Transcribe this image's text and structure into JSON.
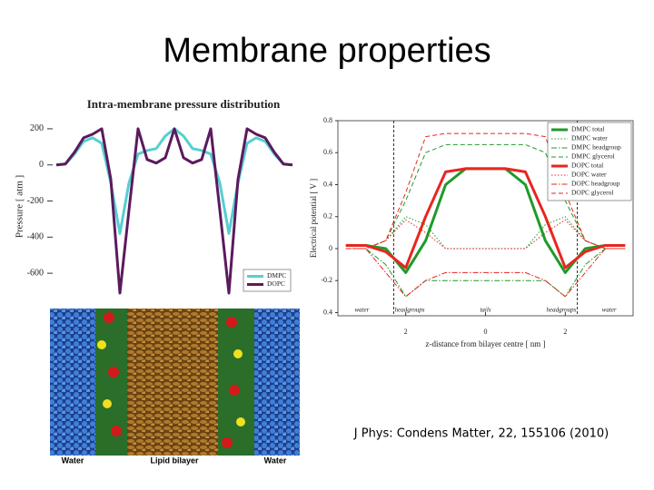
{
  "slide": {
    "title": "Membrane properties",
    "citation": "J Phys: Condens Matter, 22, 155106 (2010)"
  },
  "image": {
    "labels": [
      "Water",
      "Lipid bilayer",
      "Water"
    ]
  },
  "chart_data": [
    {
      "type": "line",
      "title": "Intra-membrane pressure distribution",
      "ylabel": "Pressure [ atm ]",
      "ylim": [
        -720,
        260
      ],
      "yticks": [
        200,
        0,
        -200,
        -400,
        -600
      ],
      "legend": "lower right",
      "series": [
        {
          "name": "DMPC",
          "color": "#56cfd0",
          "dash": "solid",
          "values": [
            0,
            5,
            60,
            130,
            150,
            120,
            -100,
            -380,
            -100,
            60,
            80,
            90,
            160,
            200,
            160,
            90,
            80,
            60,
            -100,
            -380,
            -100,
            120,
            150,
            130,
            60,
            5,
            0
          ]
        },
        {
          "name": "DOPC",
          "color": "#5b1a5e",
          "dash": "solid",
          "values": [
            0,
            5,
            70,
            150,
            170,
            200,
            -80,
            -710,
            -250,
            200,
            30,
            10,
            40,
            200,
            40,
            10,
            30,
            200,
            -250,
            -710,
            -80,
            200,
            170,
            150,
            70,
            5,
            0
          ]
        }
      ]
    },
    {
      "type": "line",
      "xlabel": "z-distance from bilayer centre [ nm ]",
      "ylabel": "Electrical potential [ V ]",
      "xlim": [
        -3.7,
        3.7
      ],
      "ylim": [
        -0.42,
        0.8
      ],
      "frame": true,
      "legend": "upper right",
      "xticks": [
        {
          "value": -2,
          "label": "2"
        },
        0,
        2
      ],
      "yticks": [
        0.8,
        0.6,
        0.4,
        0.2,
        0,
        -0.2,
        {
          "value": -0.4,
          "label": "0.4"
        }
      ],
      "boundaries": [
        -2.3,
        2.3
      ],
      "regions": [
        {
          "label": "water",
          "x": -3.1
        },
        {
          "label": "headgroups",
          "x": -1.9
        },
        {
          "label": "tails",
          "x": 0
        },
        {
          "label": "headgroups",
          "x": 1.9
        },
        {
          "label": "water",
          "x": 3.1
        }
      ],
      "x": [
        -3.5,
        -3,
        -2.5,
        -2,
        -1.5,
        -1,
        -0.5,
        0,
        0.5,
        1,
        1.5,
        2,
        2.5,
        3,
        3.5
      ],
      "series": [
        {
          "name": "DMPC total",
          "color": "#1f9a2b",
          "dash": "solid",
          "values": [
            0.02,
            0.02,
            0,
            -0.15,
            0.05,
            0.4,
            0.5,
            0.5,
            0.5,
            0.4,
            0.05,
            -0.15,
            0,
            0.02,
            0.02
          ]
        },
        {
          "name": "DMPC water",
          "color": "#1f9a2b",
          "dash": "dotted",
          "values": [
            0,
            0,
            0.05,
            0.2,
            0.15,
            0,
            0,
            0,
            0,
            0,
            0.15,
            0.2,
            0.05,
            0,
            0
          ]
        },
        {
          "name": "DMPC headgroup",
          "color": "#1f9a2b",
          "dash": "dashdot",
          "values": [
            0,
            0,
            -0.1,
            -0.3,
            -0.2,
            -0.2,
            -0.2,
            -0.2,
            -0.2,
            -0.2,
            -0.2,
            -0.3,
            -0.1,
            0,
            0
          ]
        },
        {
          "name": "DMPC glycerol",
          "color": "#1f9a2b",
          "dash": "dashed",
          "values": [
            0,
            0,
            0.05,
            0.3,
            0.6,
            0.65,
            0.65,
            0.65,
            0.65,
            0.65,
            0.6,
            0.3,
            0.05,
            0,
            0
          ]
        },
        {
          "name": "DOPC total",
          "color": "#e8261f",
          "dash": "solid",
          "values": [
            0.02,
            0.02,
            -0.02,
            -0.12,
            0.2,
            0.48,
            0.5,
            0.5,
            0.5,
            0.48,
            0.2,
            -0.12,
            -0.02,
            0.02,
            0.02
          ]
        },
        {
          "name": "DOPC water",
          "color": "#e8261f",
          "dash": "dotted",
          "values": [
            0,
            0,
            0.05,
            0.18,
            0.1,
            0,
            0,
            0,
            0,
            0,
            0.1,
            0.18,
            0.05,
            0,
            0
          ]
        },
        {
          "name": "DOPC headgroup",
          "color": "#e8261f",
          "dash": "dashdot",
          "values": [
            0,
            0,
            -0.15,
            -0.3,
            -0.2,
            -0.15,
            -0.15,
            -0.15,
            -0.15,
            -0.15,
            -0.2,
            -0.3,
            -0.15,
            0,
            0
          ]
        },
        {
          "name": "DOPC glycerol",
          "color": "#e8261f",
          "dash": "dashed",
          "values": [
            0,
            0,
            0.05,
            0.35,
            0.7,
            0.72,
            0.72,
            0.72,
            0.72,
            0.72,
            0.7,
            0.35,
            0.05,
            0,
            0
          ]
        }
      ]
    }
  ]
}
